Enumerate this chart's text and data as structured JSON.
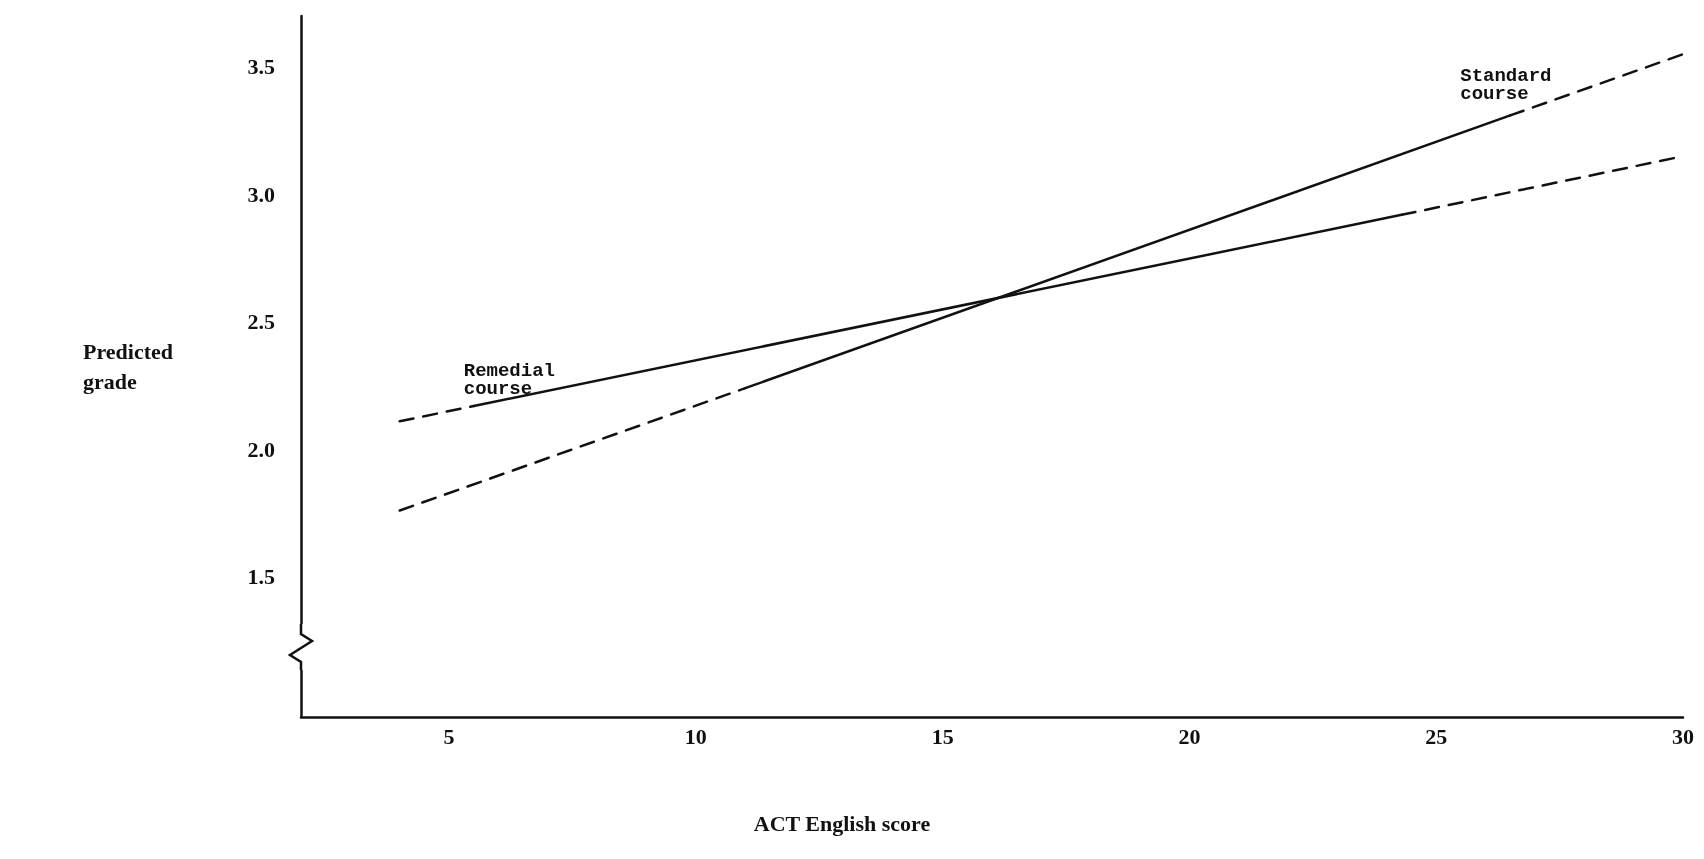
{
  "chart_data": {
    "type": "line",
    "xlabel": "ACT English score",
    "ylabel": "Predicted grade",
    "xlim": [
      2,
      30
    ],
    "xticks": [
      5,
      10,
      15,
      20,
      25,
      30
    ],
    "ylim": [
      0.95,
      3.7
    ],
    "yticks": [
      {
        "value": 1.5,
        "label": "1.5"
      },
      {
        "value": 2,
        "label": "2.0"
      },
      {
        "value": 2.5,
        "label": "2.5"
      },
      {
        "value": 3,
        "label": "3.0"
      },
      {
        "value": 3.5,
        "label": "3.5"
      }
    ],
    "grid": false,
    "legend": false,
    "marker": "none",
    "series": [
      {
        "name": "Remedial course",
        "color": "#111111",
        "line_style": "solid",
        "x": [
          5.5,
          24.3
        ],
        "values": [
          2.17,
          2.92
        ]
      },
      {
        "color": "#111111",
        "line_style": "dashed",
        "x": [
          4,
          5.5
        ],
        "values": [
          2.11,
          2.17
        ]
      },
      {
        "color": "#111111",
        "line_style": "dashed",
        "x": [
          24.3,
          30
        ],
        "values": [
          2.92,
          3.15
        ]
      },
      {
        "name": "Standard course",
        "color": "#111111",
        "line_style": "solid",
        "x": [
          11,
          26.5
        ],
        "values": [
          2.24,
          3.31
        ]
      },
      {
        "color": "#111111",
        "line_style": "dashed",
        "x": [
          4,
          11
        ],
        "values": [
          1.76,
          2.24
        ]
      },
      {
        "color": "#111111",
        "line_style": "dashed",
        "x": [
          26.5,
          30
        ],
        "values": [
          3.31,
          3.55
        ]
      }
    ]
  }
}
